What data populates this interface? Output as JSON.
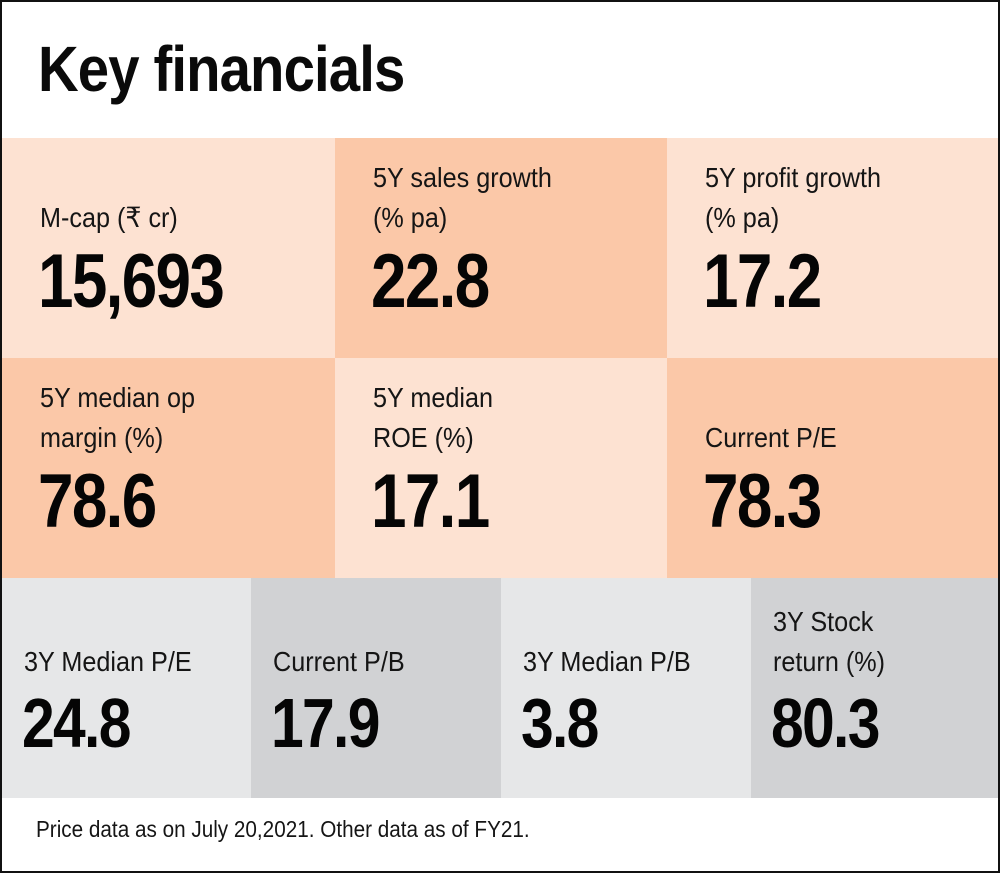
{
  "title": "Key financials",
  "colors": {
    "peach_light": "#fde2d2",
    "peach_dark": "#fbc8a8",
    "grey_light": "#e6e7e8",
    "grey_dark": "#d1d2d4"
  },
  "rows": [
    {
      "cells": [
        {
          "label_lines": [
            "M-cap (₹ cr)"
          ],
          "value": "15,693",
          "shade": "peach_light"
        },
        {
          "label_lines": [
            "5Y sales growth",
            "(% pa)"
          ],
          "value": "22.8",
          "shade": "peach_dark"
        },
        {
          "label_lines": [
            "5Y profit growth",
            "(% pa)"
          ],
          "value": "17.2",
          "shade": "peach_light"
        }
      ]
    },
    {
      "cells": [
        {
          "label_lines": [
            "5Y median op",
            "margin (%)"
          ],
          "value": "78.6",
          "shade": "peach_dark"
        },
        {
          "label_lines": [
            "5Y median",
            "ROE (%)"
          ],
          "value": "17.1",
          "shade": "peach_light"
        },
        {
          "label_lines": [
            "Current P/E"
          ],
          "value": "78.3",
          "shade": "peach_dark"
        }
      ]
    },
    {
      "cells": [
        {
          "label_lines": [
            "3Y Median P/E"
          ],
          "value": "24.8",
          "shade": "grey_light"
        },
        {
          "label_lines": [
            "Current P/B"
          ],
          "value": "17.9",
          "shade": "grey_dark"
        },
        {
          "label_lines": [
            "3Y Median P/B"
          ],
          "value": "3.8",
          "shade": "grey_light"
        },
        {
          "label_lines": [
            "3Y Stock",
            "return (%)"
          ],
          "value": "80.3",
          "shade": "grey_dark"
        }
      ]
    }
  ],
  "footnote": "Price data as on July 20,2021. Other data as of FY21."
}
